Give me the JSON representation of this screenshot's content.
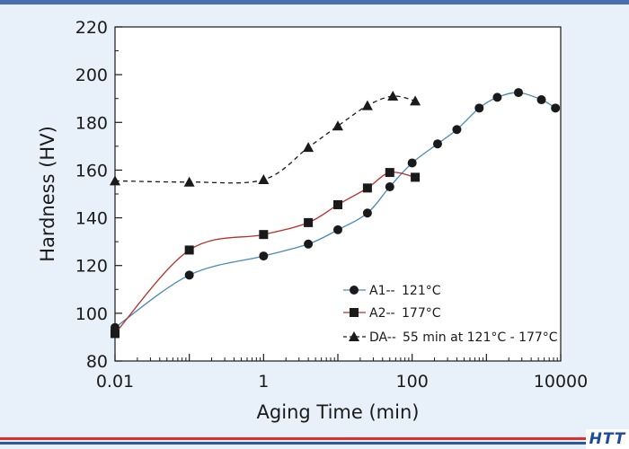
{
  "chart_data": {
    "type": "line",
    "title": "",
    "xlabel": "Aging Time (min)",
    "ylabel": "Hardness (HV)",
    "xscale": "log",
    "xlim": [
      0.01,
      10000
    ],
    "ylim": [
      80,
      220
    ],
    "x_ticks": [
      0.01,
      1,
      100,
      10000
    ],
    "x_tick_labels": [
      "0.01",
      "1",
      "100",
      "10000"
    ],
    "y_ticks": [
      80,
      100,
      120,
      140,
      160,
      180,
      200,
      220
    ],
    "y_tick_labels": [
      "80",
      "100",
      "120",
      "140",
      "160",
      "180",
      "200",
      "220"
    ],
    "grid": false,
    "legend_position": "bottom-right",
    "series": [
      {
        "name": "A1--",
        "legend_text": "121°C",
        "marker": "circle",
        "line_style": "solid",
        "color": "#4a8ab5",
        "points": [
          [
            0.01,
            94
          ],
          [
            0.1,
            116
          ],
          [
            1,
            124
          ],
          [
            4,
            129
          ],
          [
            10,
            135
          ],
          [
            25,
            142
          ],
          [
            50,
            153
          ],
          [
            100,
            163
          ],
          [
            220,
            171
          ],
          [
            400,
            177
          ],
          [
            800,
            186
          ],
          [
            1400,
            190.5
          ],
          [
            2700,
            192.5
          ],
          [
            5500,
            189.5
          ],
          [
            8500,
            186
          ]
        ]
      },
      {
        "name": "A2--",
        "legend_text": "177°C",
        "marker": "square",
        "line_style": "solid",
        "color": "#b5302a",
        "points": [
          [
            0.01,
            91.5
          ],
          [
            0.1,
            126.5
          ],
          [
            1,
            133
          ],
          [
            4,
            138
          ],
          [
            10,
            145.5
          ],
          [
            25,
            152.5
          ],
          [
            50,
            159
          ],
          [
            110,
            157
          ]
        ]
      },
      {
        "name": "DA--",
        "legend_text": "55 min at 121°C - 177°C",
        "marker": "triangle",
        "line_style": "dashed",
        "color": "#1a1a1a",
        "points": [
          [
            0.01,
            155.5
          ],
          [
            0.1,
            155
          ],
          [
            1,
            156
          ],
          [
            4,
            169.5
          ],
          [
            10,
            178.5
          ],
          [
            25,
            187
          ],
          [
            55,
            191
          ],
          [
            110,
            189
          ]
        ]
      }
    ]
  },
  "logo": {
    "text": "HTT"
  },
  "colors": {
    "background": "#e8f0fa",
    "top_rule": "#4a6fb0",
    "bottom_rule_red": "#d9312d",
    "bottom_rule_blue": "#2f56a3"
  }
}
